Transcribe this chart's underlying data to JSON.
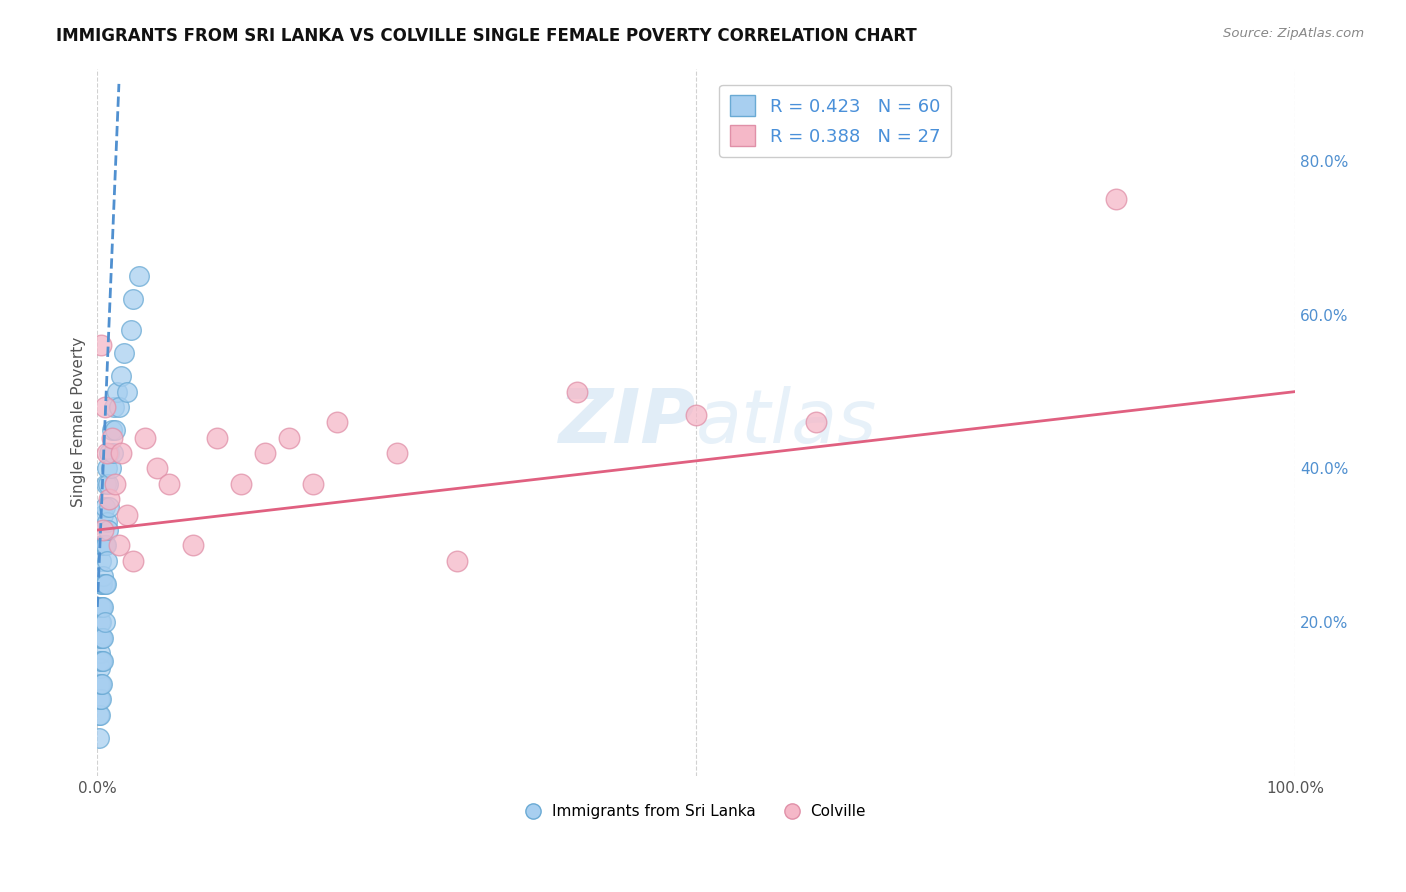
{
  "title": "IMMIGRANTS FROM SRI LANKA VS COLVILLE SINGLE FEMALE POVERTY CORRELATION CHART",
  "source": "Source: ZipAtlas.com",
  "ylabel": "Single Female Poverty",
  "r_blue": 0.423,
  "n_blue": 60,
  "r_pink": 0.388,
  "n_pink": 27,
  "legend_label_blue": "Immigrants from Sri Lanka",
  "legend_label_pink": "Colville",
  "xlim": [
    0.0,
    1.0
  ],
  "ylim": [
    0.0,
    0.92
  ],
  "xticks": [
    0.0,
    0.5,
    1.0
  ],
  "xticklabels": [
    "0.0%",
    "",
    "100.0%"
  ],
  "yticks_right": [
    0.2,
    0.4,
    0.6,
    0.8
  ],
  "yticklabels_right": [
    "20.0%",
    "40.0%",
    "60.0%",
    "80.0%"
  ],
  "blue_color": "#a8cff0",
  "blue_edge": "#6aaad4",
  "pink_color": "#f5b8c8",
  "pink_edge": "#e090a8",
  "trend_blue_color": "#5090d0",
  "trend_pink_color": "#e06080",
  "watermark_color": "#c5dcf0",
  "background_color": "#ffffff",
  "grid_color": "#cccccc",
  "blue_scatter_x": [
    0.001,
    0.001,
    0.001,
    0.001,
    0.001,
    0.002,
    0.002,
    0.002,
    0.002,
    0.002,
    0.002,
    0.002,
    0.002,
    0.003,
    0.003,
    0.003,
    0.003,
    0.003,
    0.003,
    0.003,
    0.003,
    0.004,
    0.004,
    0.004,
    0.004,
    0.004,
    0.004,
    0.005,
    0.005,
    0.005,
    0.005,
    0.005,
    0.005,
    0.006,
    0.006,
    0.006,
    0.006,
    0.007,
    0.007,
    0.007,
    0.008,
    0.008,
    0.008,
    0.009,
    0.009,
    0.01,
    0.01,
    0.011,
    0.012,
    0.013,
    0.014,
    0.015,
    0.016,
    0.018,
    0.02,
    0.022,
    0.025,
    0.028,
    0.03,
    0.035
  ],
  "blue_scatter_y": [
    0.08,
    0.05,
    0.12,
    0.1,
    0.15,
    0.08,
    0.1,
    0.12,
    0.14,
    0.16,
    0.18,
    0.2,
    0.22,
    0.1,
    0.12,
    0.15,
    0.18,
    0.2,
    0.22,
    0.25,
    0.28,
    0.12,
    0.15,
    0.18,
    0.22,
    0.25,
    0.3,
    0.15,
    0.18,
    0.22,
    0.26,
    0.3,
    0.34,
    0.2,
    0.25,
    0.3,
    0.35,
    0.25,
    0.3,
    0.38,
    0.28,
    0.33,
    0.4,
    0.32,
    0.38,
    0.35,
    0.42,
    0.4,
    0.45,
    0.42,
    0.48,
    0.45,
    0.5,
    0.48,
    0.52,
    0.55,
    0.5,
    0.58,
    0.62,
    0.65
  ],
  "pink_scatter_x": [
    0.003,
    0.005,
    0.006,
    0.008,
    0.01,
    0.012,
    0.015,
    0.018,
    0.02,
    0.025,
    0.03,
    0.04,
    0.05,
    0.06,
    0.08,
    0.1,
    0.12,
    0.14,
    0.16,
    0.18,
    0.2,
    0.25,
    0.3,
    0.4,
    0.5,
    0.6,
    0.85
  ],
  "pink_scatter_y": [
    0.56,
    0.32,
    0.48,
    0.42,
    0.36,
    0.44,
    0.38,
    0.3,
    0.42,
    0.34,
    0.28,
    0.44,
    0.4,
    0.38,
    0.3,
    0.44,
    0.38,
    0.42,
    0.44,
    0.38,
    0.46,
    0.42,
    0.28,
    0.5,
    0.47,
    0.46,
    0.75
  ],
  "trend_blue_x0": 0.0,
  "trend_blue_y0": 0.22,
  "trend_blue_x1": 0.018,
  "trend_blue_y1": 0.9,
  "trend_pink_x0": 0.0,
  "trend_pink_y0": 0.32,
  "trend_pink_x1": 1.0,
  "trend_pink_y1": 0.5
}
